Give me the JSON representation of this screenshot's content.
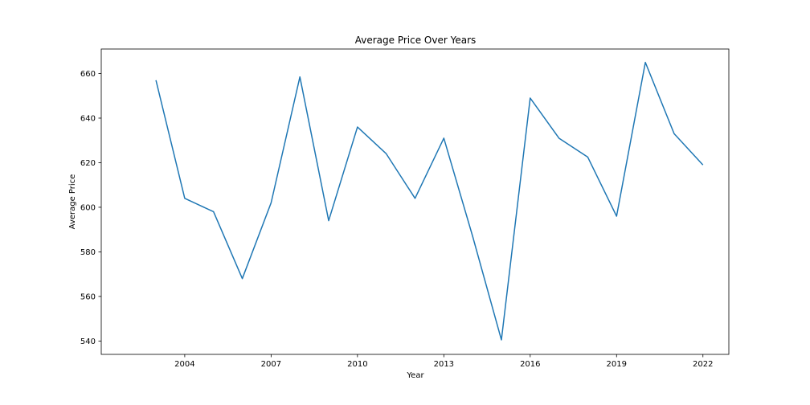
{
  "chart_data": {
    "type": "line",
    "title": "Average Price Over Years",
    "xlabel": "Year",
    "ylabel": "Average Price",
    "x": [
      2003,
      2004,
      2005,
      2006,
      2007,
      2008,
      2009,
      2010,
      2011,
      2012,
      2013,
      2014,
      2015,
      2016,
      2017,
      2018,
      2019,
      2020,
      2021,
      2022
    ],
    "series": [
      {
        "values": [
          657,
          604,
          598,
          568,
          602,
          658.5,
          594,
          636,
          624,
          604,
          631,
          587,
          540.5,
          649,
          631,
          622.5,
          596,
          665,
          633,
          619
        ],
        "color": "#1f77b4"
      }
    ],
    "xlim": [
      2001.1,
      2022.9
    ],
    "ylim": [
      534,
      671
    ],
    "xticks": [
      2004,
      2007,
      2010,
      2013,
      2016,
      2019,
      2022
    ],
    "yticks": [
      540,
      560,
      580,
      600,
      620,
      640,
      660
    ],
    "grid": false,
    "legend": "none"
  }
}
